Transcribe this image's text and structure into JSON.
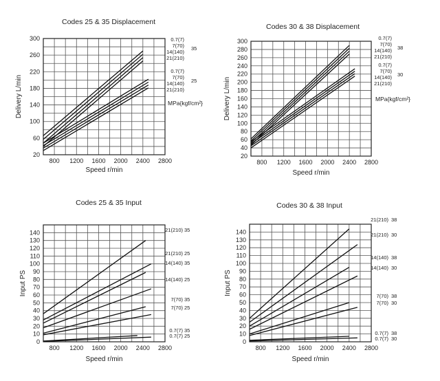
{
  "chart_data": [
    {
      "type": "line",
      "title": "Codes 25 & 35 Displacement",
      "xlabel": "Speed r/min",
      "ylabel": "Delivery L/min",
      "xlim": [
        600,
        2800
      ],
      "ylim": [
        20,
        300
      ],
      "xticks": [
        "800",
        "1200",
        "1600",
        "2000",
        "2400",
        "2800"
      ],
      "yticks": [
        "20",
        "60",
        "100",
        "140",
        "180",
        "220",
        "260",
        "300"
      ],
      "grid": true,
      "unit_label": "MPa{kgf/cm²}",
      "groups": [
        {
          "code": "35",
          "labels": [
            "0.7(7)",
            "7(70)",
            "14(140)",
            "21(210)"
          ]
        },
        {
          "code": "25",
          "labels": [
            "0.7(7)",
            "7(70)",
            "14(140)",
            "21(210)"
          ]
        }
      ],
      "series": [
        {
          "group": 0,
          "x": [
            600,
            2400
          ],
          "y": [
            66,
            270
          ]
        },
        {
          "group": 0,
          "x": [
            600,
            2400
          ],
          "y": [
            57,
            262
          ]
        },
        {
          "group": 0,
          "x": [
            600,
            2400
          ],
          "y": [
            48,
            254
          ]
        },
        {
          "group": 0,
          "x": [
            600,
            2400
          ],
          "y": [
            40,
            246
          ]
        },
        {
          "group": 1,
          "x": [
            600,
            2500
          ],
          "y": [
            48,
            202
          ]
        },
        {
          "group": 1,
          "x": [
            600,
            2500
          ],
          "y": [
            42,
            195
          ]
        },
        {
          "group": 1,
          "x": [
            600,
            2500
          ],
          "y": [
            36,
            188
          ]
        },
        {
          "group": 1,
          "x": [
            600,
            2500
          ],
          "y": [
            30,
            181
          ]
        }
      ]
    },
    {
      "type": "line",
      "title": "Codes 30 & 38 Displacement",
      "xlabel": "Speed r/min",
      "ylabel": "Delivery L/min",
      "xlim": [
        600,
        2800
      ],
      "ylim": [
        20,
        300
      ],
      "xticks": [
        "800",
        "1200",
        "1600",
        "2000",
        "2400",
        "2800"
      ],
      "yticks": [
        "20",
        "40",
        "60",
        "80",
        "100",
        "120",
        "140",
        "160",
        "180",
        "200",
        "220",
        "240",
        "260",
        "280",
        "300"
      ],
      "grid": true,
      "unit_label": "MPa{kgf/cm²}",
      "groups": [
        {
          "code": "38",
          "labels": [
            "0.7(7)",
            "7(70)",
            "14(140)",
            "21(210)"
          ]
        },
        {
          "code": "30",
          "labels": [
            "0.7(7)",
            "7(70)",
            "14(140)",
            "21(210)"
          ]
        }
      ],
      "series": [
        {
          "group": 0,
          "x": [
            600,
            2400
          ],
          "y": [
            62,
            290
          ]
        },
        {
          "group": 0,
          "x": [
            600,
            2400
          ],
          "y": [
            57,
            283
          ]
        },
        {
          "group": 0,
          "x": [
            600,
            2400
          ],
          "y": [
            52,
            276
          ]
        },
        {
          "group": 0,
          "x": [
            600,
            2400
          ],
          "y": [
            47,
            269
          ]
        },
        {
          "group": 1,
          "x": [
            600,
            2500
          ],
          "y": [
            55,
            233
          ]
        },
        {
          "group": 1,
          "x": [
            600,
            2500
          ],
          "y": [
            50,
            227
          ]
        },
        {
          "group": 1,
          "x": [
            600,
            2500
          ],
          "y": [
            45,
            221
          ]
        },
        {
          "group": 1,
          "x": [
            600,
            2500
          ],
          "y": [
            40,
            215
          ]
        }
      ]
    },
    {
      "type": "line",
      "title": "Codes 25 & 35 Input",
      "xlabel": "Speed r/min",
      "ylabel": "Input PS",
      "xlim": [
        600,
        2800
      ],
      "ylim": [
        0,
        150
      ],
      "xticks": [
        "800",
        "1200",
        "1600",
        "2000",
        "2400",
        "2800"
      ],
      "yticks": [
        "0",
        "10",
        "20",
        "30",
        "40",
        "50",
        "60",
        "70",
        "80",
        "90",
        "100",
        "110",
        "120",
        "130",
        "140"
      ],
      "grid": true,
      "series": [
        {
          "label": "21(210)",
          "code": "35",
          "x": [
            600,
            2450
          ],
          "y": [
            36,
            130
          ]
        },
        {
          "label": "21(210)",
          "code": "25",
          "x": [
            600,
            2550
          ],
          "y": [
            28,
            100
          ]
        },
        {
          "label": "14(140)",
          "code": "35",
          "x": [
            600,
            2450
          ],
          "y": [
            24,
            89
          ]
        },
        {
          "label": "14(140)",
          "code": "25",
          "x": [
            600,
            2550
          ],
          "y": [
            18,
            68
          ]
        },
        {
          "label": "7(70)",
          "code": "35",
          "x": [
            600,
            2450
          ],
          "y": [
            11,
            45
          ]
        },
        {
          "label": "7(70)",
          "code": "25",
          "x": [
            600,
            2550
          ],
          "y": [
            9,
            35
          ]
        },
        {
          "label": "0.7(7)",
          "code": "35",
          "x": [
            600,
            2300
          ],
          "y": [
            1,
            8
          ]
        },
        {
          "label": "0.7(7)",
          "code": "25",
          "x": [
            600,
            2550
          ],
          "y": [
            0.5,
            6
          ]
        }
      ]
    },
    {
      "type": "line",
      "title": "Codes 30 & 38 Input",
      "xlabel": "Speed r/min",
      "ylabel": "Input PS",
      "xlim": [
        600,
        2800
      ],
      "ylim": [
        0,
        150
      ],
      "xticks": [
        "800",
        "1200",
        "1600",
        "2000",
        "2400",
        "2800"
      ],
      "yticks": [
        "0",
        "10",
        "20",
        "30",
        "40",
        "50",
        "60",
        "70",
        "80",
        "90",
        "100",
        "110",
        "120",
        "130",
        "140"
      ],
      "grid": true,
      "series": [
        {
          "label": "21(210)",
          "code": "38",
          "x": [
            600,
            2400
          ],
          "y": [
            30,
            144
          ]
        },
        {
          "label": "21(210)",
          "code": "30",
          "x": [
            600,
            2550
          ],
          "y": [
            25,
            124
          ]
        },
        {
          "label": "14(140)",
          "code": "38",
          "x": [
            600,
            2400
          ],
          "y": [
            20,
            95
          ]
        },
        {
          "label": "14(140)",
          "code": "30",
          "x": [
            600,
            2550
          ],
          "y": [
            16,
            84
          ]
        },
        {
          "label": "7(70)",
          "code": "38",
          "x": [
            600,
            2400
          ],
          "y": [
            10,
            50
          ]
        },
        {
          "label": "7(70)",
          "code": "30",
          "x": [
            600,
            2550
          ],
          "y": [
            8,
            44
          ]
        },
        {
          "label": "0.7(7)",
          "code": "38",
          "x": [
            600,
            2400
          ],
          "y": [
            2,
            7
          ]
        },
        {
          "label": "0.7(7)",
          "code": "30",
          "x": [
            600,
            2550
          ],
          "y": [
            1,
            5
          ]
        }
      ]
    }
  ]
}
